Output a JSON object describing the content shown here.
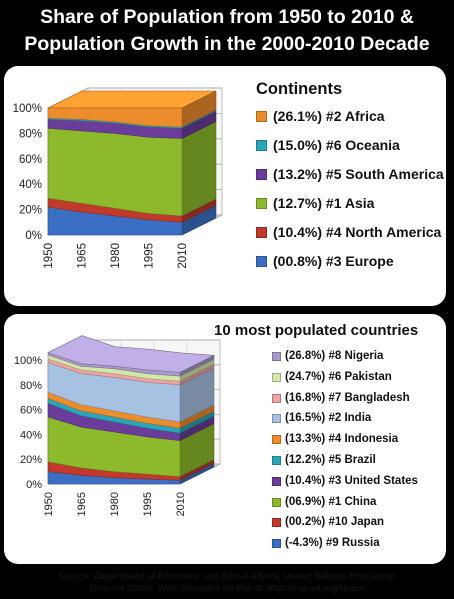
{
  "title_line1": "Share of Population from 1950 to 2010 &",
  "title_line2": "Population Growth in the 2000-2010 Decade",
  "source_line1": "Source: Department of Economic and Social Affairs, United Nations Population",
  "source_line2": "Division (2009). Web. available on line at: http://esa.un.org/unpp/",
  "chart_data": [
    {
      "type": "area",
      "title": "Continents",
      "x": [
        "1950",
        "1965",
        "1980",
        "1995",
        "2010"
      ],
      "yticks": [
        "0%",
        "20%",
        "40%",
        "60%",
        "80%",
        "100%"
      ],
      "ylim": [
        0,
        100
      ],
      "stacked": true,
      "grid": true,
      "legend_position": "right",
      "series": [
        {
          "name": "#3 Europe",
          "growth": "(00.8%)",
          "color": "#3a6fc4",
          "values": [
            22,
            18,
            15,
            12,
            10
          ]
        },
        {
          "name": "#4 North America",
          "growth": "(10.4%)",
          "color": "#c0392b",
          "values": [
            7,
            7,
            6,
            5,
            5
          ]
        },
        {
          "name": "#1 Asia",
          "growth": "(12.7%)",
          "color": "#8dba2c",
          "values": [
            55,
            57,
            59,
            60,
            61
          ]
        },
        {
          "name": "#5 South America",
          "growth": "(13.2%)",
          "color": "#6a3d9a",
          "values": [
            7,
            8,
            8,
            8,
            8
          ]
        },
        {
          "name": "#6 Oceania",
          "growth": "(15.0%)",
          "color": "#2aa6b8",
          "values": [
            1,
            1,
            1,
            1,
            1
          ]
        },
        {
          "name": "#2 Africa",
          "growth": "(26.1%)",
          "color": "#ed8c2c",
          "values": [
            8,
            9,
            11,
            14,
            15
          ]
        }
      ]
    },
    {
      "type": "area",
      "title": "10 most populated countries",
      "x": [
        "1950",
        "1965",
        "1980",
        "1995",
        "2010"
      ],
      "yticks": [
        "0%",
        "20%",
        "40%",
        "60%",
        "80%",
        "100%"
      ],
      "ylim": [
        0,
        100
      ],
      "stacked": true,
      "grid": true,
      "legend_position": "right",
      "series": [
        {
          "name": "#9 Russia",
          "growth": "(-4.3%)",
          "color": "#3a6fc4",
          "values": [
            10,
            7,
            5,
            4,
            3
          ]
        },
        {
          "name": "#10 Japan",
          "growth": "(00.2%)",
          "color": "#c0392b",
          "values": [
            8,
            6,
            5,
            4,
            3
          ]
        },
        {
          "name": "#1 China",
          "growth": "(06.9%)",
          "color": "#8dba2c",
          "values": [
            36,
            33,
            32,
            30,
            29
          ]
        },
        {
          "name": "#3 United States",
          "growth": "(10.4%)",
          "color": "#6a3d9a",
          "values": [
            11,
            9,
            8,
            7,
            6
          ]
        },
        {
          "name": "#5 Brazil",
          "growth": "(12.2%)",
          "color": "#2aa6b8",
          "values": [
            4,
            4,
            4,
            4,
            4
          ]
        },
        {
          "name": "#4 Indonesia",
          "growth": "(13.3%)",
          "color": "#ed8c2c",
          "values": [
            5,
            5,
            5,
            5,
            5
          ]
        },
        {
          "name": "#2 India",
          "growth": "(16.5%)",
          "color": "#a7c1e3",
          "values": [
            24,
            25,
            27,
            28,
            30
          ]
        },
        {
          "name": "#7 Bangladesh",
          "growth": "(16.8%)",
          "color": "#eba3a3",
          "values": [
            3,
            3,
            3,
            3,
            3
          ]
        },
        {
          "name": "#6 Pakistan",
          "growth": "(24.7%)",
          "color": "#d4e6a8",
          "values": [
            3,
            3,
            4,
            4,
            4
          ]
        },
        {
          "name": "#8 Nigeria",
          "growth": "(26.8%)",
          "color": "#a899c9",
          "values": [
            2,
            2,
            2,
            3,
            3
          ]
        }
      ]
    }
  ]
}
